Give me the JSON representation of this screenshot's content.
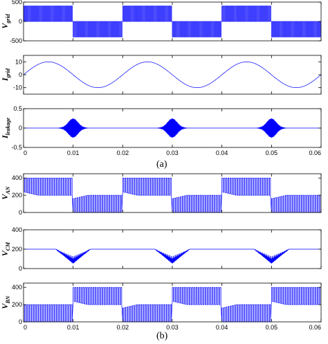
{
  "figure": {
    "caption_a": "(a)",
    "caption_b": "(b)"
  },
  "chart_data": [
    {
      "type": "line",
      "ylabel_main": "V",
      "ylabel_sub": "grid",
      "color": "#0000ff",
      "waveform": "pwm_square",
      "x": [
        0,
        0.01,
        0.02,
        0.03,
        0.04,
        0.05,
        0.06
      ],
      "levels": [
        400,
        -400,
        400,
        -400,
        400,
        -400
      ],
      "xlim": [
        0,
        0.06
      ],
      "ylim": [
        -500,
        500
      ],
      "yticks": [
        -500,
        0,
        500
      ],
      "xtick_labels": []
    },
    {
      "type": "line",
      "ylabel_main": "I",
      "ylabel_sub": "grid",
      "color": "#0000ff",
      "waveform": "sine",
      "amplitude": 10,
      "frequency_hz": 50,
      "xlim": [
        0,
        0.06
      ],
      "ylim": [
        -15,
        15
      ],
      "yticks": [
        -10,
        0,
        10
      ],
      "xtick_labels": []
    },
    {
      "type": "line",
      "ylabel_main": "I",
      "ylabel_sub": "leakage",
      "color": "#0000ff",
      "waveform": "bursts",
      "burst_centers": [
        0.01,
        0.03,
        0.05
      ],
      "burst_peak": 0.25,
      "xlim": [
        0,
        0.06
      ],
      "ylim": [
        -0.5,
        0.5
      ],
      "yticks": [
        -0.5,
        0,
        0.5
      ],
      "xtick_labels": [
        "0",
        "0.01",
        "0.02",
        "0.03",
        "0.04",
        "0.05",
        "0.06"
      ]
    },
    {
      "type": "line",
      "ylabel_main": "V",
      "ylabel_sub": "AN",
      "color": "#0000ff",
      "waveform": "pwm_high_low",
      "segments_high": [
        [
          0,
          0.01
        ],
        [
          0.02,
          0.03
        ],
        [
          0.04,
          0.05
        ]
      ],
      "high_range": [
        200,
        400
      ],
      "low_range": [
        0,
        200
      ],
      "xlim": [
        0,
        0.06
      ],
      "ylim": [
        0,
        450
      ],
      "yticks": [
        0,
        200,
        400
      ],
      "xtick_labels": []
    },
    {
      "type": "line",
      "ylabel_main": "V",
      "ylabel_sub": "CM",
      "color": "#0000ff",
      "waveform": "dips",
      "baseline": 200,
      "dip_centers": [
        0.01,
        0.03,
        0.05
      ],
      "dip_depth": 150,
      "xlim": [
        0,
        0.06
      ],
      "ylim": [
        0,
        400
      ],
      "yticks": [
        0,
        200,
        400
      ],
      "xtick_labels": []
    },
    {
      "type": "line",
      "ylabel_main": "V",
      "ylabel_sub": "BN",
      "color": "#0000ff",
      "waveform": "pwm_low_high",
      "segments_high": [
        [
          0.01,
          0.02
        ],
        [
          0.03,
          0.04
        ],
        [
          0.05,
          0.06
        ]
      ],
      "high_range": [
        200,
        400
      ],
      "low_range": [
        0,
        200
      ],
      "xlim": [
        0,
        0.06
      ],
      "ylim": [
        0,
        450
      ],
      "yticks": [
        0,
        200,
        400
      ],
      "xtick_labels": [
        "0",
        "0.01",
        "0.02",
        "0.03",
        "0.04",
        "0.05",
        "0.06"
      ]
    }
  ]
}
